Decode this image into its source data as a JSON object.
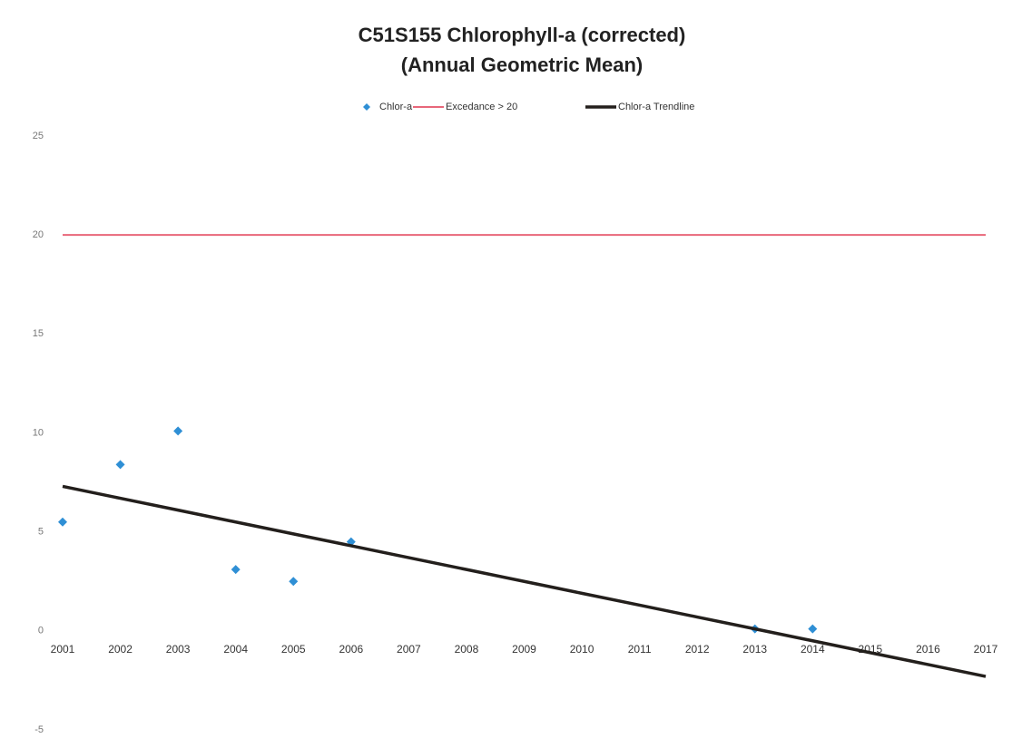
{
  "chart_data": {
    "type": "line",
    "title": "C51S155 Chlorophyll-a (corrected)",
    "subtitle": "(Annual Geometric Mean)",
    "categories": [
      "2001",
      "2002",
      "2003",
      "2004",
      "2005",
      "2006",
      "2007",
      "2008",
      "2009",
      "2010",
      "2011",
      "2012",
      "2013",
      "2014",
      "2015",
      "2016",
      "2017"
    ],
    "series": [
      {
        "name": "Chlor-a",
        "color": "#2f8fd5",
        "mode": "markers",
        "values": [
          5.5,
          8.4,
          10.1,
          3.1,
          2.5,
          4.5,
          null,
          null,
          null,
          null,
          null,
          null,
          0.1,
          0.1,
          null,
          null,
          null
        ]
      },
      {
        "name": "Excedance > 20",
        "color": "#e8677a",
        "mode": "line",
        "values": [
          20,
          20,
          20,
          20,
          20,
          20,
          20,
          20,
          20,
          20,
          20,
          20,
          20,
          20,
          20,
          20,
          20
        ]
      },
      {
        "name": "Chlor-a Trendline",
        "color": "#231f1c",
        "mode": "line",
        "values": [
          7.3,
          6.7,
          6.1,
          5.5,
          4.9,
          4.3,
          3.7,
          3.1,
          2.5,
          1.9,
          1.3,
          0.7,
          0.1,
          -0.5,
          -1.1,
          -1.7,
          -2.3
        ]
      }
    ],
    "ylim": [
      -5,
      25
    ],
    "yticks": [
      -5,
      0,
      5,
      10,
      15,
      20,
      25
    ],
    "grid": false
  }
}
